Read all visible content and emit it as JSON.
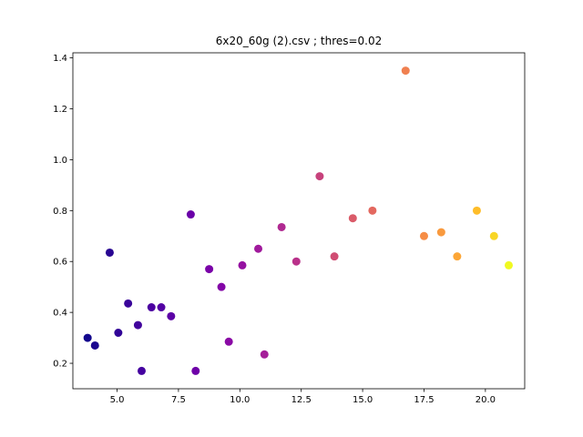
{
  "chart_data": {
    "type": "scatter",
    "title": "6x20_60g (2).csv ; thres=0.02",
    "xlabel": "",
    "ylabel": "",
    "xlim": [
      3.2,
      21.6
    ],
    "ylim": [
      0.1,
      1.42
    ],
    "x_ticks": [
      5.0,
      7.5,
      10.0,
      12.5,
      15.0,
      17.5,
      20.0
    ],
    "x_tick_labels": [
      "5.0",
      "7.5",
      "10.0",
      "12.5",
      "15.0",
      "17.5",
      "20.0"
    ],
    "y_ticks": [
      0.2,
      0.4,
      0.6,
      0.8,
      1.0,
      1.2,
      1.4
    ],
    "y_tick_labels": [
      "0.2",
      "0.4",
      "0.6",
      "0.8",
      "1.0",
      "1.2",
      "1.4"
    ],
    "grid": false,
    "colormap": "plasma",
    "color_by": "x",
    "points": [
      {
        "x": 3.8,
        "y": 0.3,
        "color": "#13078d"
      },
      {
        "x": 4.1,
        "y": 0.27,
        "color": "#1b068f"
      },
      {
        "x": 4.7,
        "y": 0.635,
        "color": "#280592"
      },
      {
        "x": 5.05,
        "y": 0.32,
        "color": "#310497"
      },
      {
        "x": 5.45,
        "y": 0.435,
        "color": "#3a049a"
      },
      {
        "x": 5.85,
        "y": 0.35,
        "color": "#42039d"
      },
      {
        "x": 6.0,
        "y": 0.17,
        "color": "#4502a0"
      },
      {
        "x": 6.4,
        "y": 0.42,
        "color": "#4c02a1"
      },
      {
        "x": 6.8,
        "y": 0.42,
        "color": "#5302a3"
      },
      {
        "x": 7.2,
        "y": 0.385,
        "color": "#5c01a6"
      },
      {
        "x": 8.0,
        "y": 0.785,
        "color": "#6a00a8"
      },
      {
        "x": 8.2,
        "y": 0.17,
        "color": "#6e00a8"
      },
      {
        "x": 8.75,
        "y": 0.57,
        "color": "#7a02a8"
      },
      {
        "x": 9.25,
        "y": 0.5,
        "color": "#8305a7"
      },
      {
        "x": 9.55,
        "y": 0.285,
        "color": "#8a09a5"
      },
      {
        "x": 10.1,
        "y": 0.585,
        "color": "#9511a1"
      },
      {
        "x": 10.75,
        "y": 0.65,
        "color": "#a01a9c"
      },
      {
        "x": 11.0,
        "y": 0.235,
        "color": "#a51f99"
      },
      {
        "x": 11.7,
        "y": 0.735,
        "color": "#b02991"
      },
      {
        "x": 12.3,
        "y": 0.6,
        "color": "#b9318a"
      },
      {
        "x": 13.25,
        "y": 0.935,
        "color": "#c7427c"
      },
      {
        "x": 13.85,
        "y": 0.62,
        "color": "#d04d73"
      },
      {
        "x": 14.6,
        "y": 0.77,
        "color": "#da5b69"
      },
      {
        "x": 15.4,
        "y": 0.8,
        "color": "#e3685f"
      },
      {
        "x": 16.75,
        "y": 1.35,
        "color": "#f08050"
      },
      {
        "x": 17.5,
        "y": 0.7,
        "color": "#f68d45"
      },
      {
        "x": 18.2,
        "y": 0.715,
        "color": "#f99a3e"
      },
      {
        "x": 18.85,
        "y": 0.62,
        "color": "#fca636"
      },
      {
        "x": 19.65,
        "y": 0.8,
        "color": "#febd2a"
      },
      {
        "x": 20.35,
        "y": 0.7,
        "color": "#f8d626"
      },
      {
        "x": 20.95,
        "y": 0.585,
        "color": "#f0f921"
      }
    ]
  }
}
